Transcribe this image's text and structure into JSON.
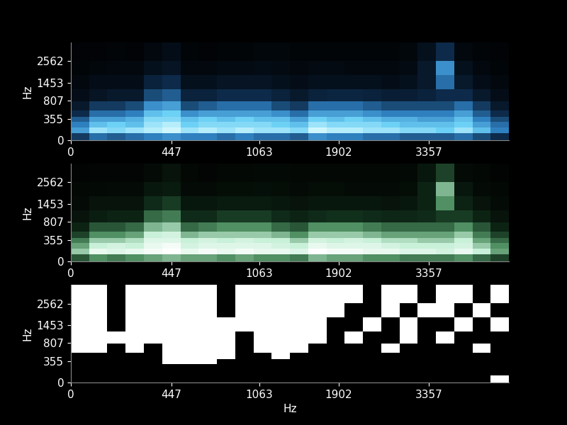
{
  "chart_data": [
    {
      "type": "heatmap",
      "ylabel": "Hz",
      "xlim": [
        0,
        5300
      ],
      "ylim": [
        0,
        4000
      ],
      "xticks": [
        0,
        447,
        1063,
        1902,
        3357
      ],
      "yticks": [
        0,
        355,
        807,
        1453,
        2562
      ],
      "x_edges": [
        0,
        66,
        137,
        216,
        302,
        396,
        498,
        611,
        733,
        867,
        1014,
        1174,
        1350,
        1541,
        1752,
        1982,
        2233,
        2507,
        2807,
        3136,
        3496,
        3889,
        4319,
        4789,
        5300
      ],
      "y_edges": [
        0,
        100,
        200,
        300,
        400,
        550,
        800,
        1200,
        1800,
        2600,
        4000
      ],
      "color_range": [
        0,
        1
      ],
      "cells": [
        [
          0.3,
          0.45,
          0.4,
          0.45,
          0.5,
          0.55,
          0.5,
          0.5,
          0.45,
          0.5,
          0.45,
          0.45,
          0.4,
          0.55,
          0.5,
          0.5,
          0.45,
          0.45,
          0.4,
          0.4,
          0.4,
          0.45,
          0.35,
          0.25
        ],
        [
          0.6,
          0.85,
          0.8,
          0.85,
          0.9,
          0.95,
          0.85,
          0.9,
          0.85,
          0.9,
          0.85,
          0.85,
          0.8,
          0.95,
          0.9,
          0.9,
          0.85,
          0.85,
          0.8,
          0.8,
          0.75,
          0.85,
          0.7,
          0.5
        ],
        [
          0.5,
          0.7,
          0.75,
          0.7,
          0.85,
          0.9,
          0.75,
          0.8,
          0.8,
          0.8,
          0.8,
          0.75,
          0.7,
          0.85,
          0.8,
          0.8,
          0.8,
          0.75,
          0.7,
          0.7,
          0.7,
          0.75,
          0.6,
          0.45
        ],
        [
          0.4,
          0.6,
          0.6,
          0.65,
          0.8,
          0.8,
          0.7,
          0.75,
          0.7,
          0.75,
          0.7,
          0.7,
          0.6,
          0.75,
          0.7,
          0.75,
          0.7,
          0.65,
          0.65,
          0.6,
          0.6,
          0.7,
          0.5,
          0.35
        ],
        [
          0.25,
          0.45,
          0.45,
          0.5,
          0.7,
          0.75,
          0.55,
          0.6,
          0.6,
          0.6,
          0.6,
          0.55,
          0.45,
          0.6,
          0.6,
          0.6,
          0.55,
          0.5,
          0.5,
          0.5,
          0.5,
          0.6,
          0.4,
          0.25
        ],
        [
          0.15,
          0.3,
          0.3,
          0.35,
          0.55,
          0.6,
          0.35,
          0.4,
          0.45,
          0.45,
          0.45,
          0.35,
          0.3,
          0.45,
          0.45,
          0.45,
          0.4,
          0.35,
          0.35,
          0.35,
          0.35,
          0.45,
          0.3,
          0.15
        ],
        [
          0.08,
          0.12,
          0.15,
          0.15,
          0.35,
          0.4,
          0.2,
          0.2,
          0.25,
          0.25,
          0.25,
          0.2,
          0.15,
          0.2,
          0.22,
          0.22,
          0.2,
          0.18,
          0.18,
          0.2,
          0.25,
          0.25,
          0.15,
          0.08
        ],
        [
          0.05,
          0.08,
          0.08,
          0.08,
          0.2,
          0.25,
          0.1,
          0.1,
          0.12,
          0.12,
          0.12,
          0.1,
          0.08,
          0.1,
          0.1,
          0.1,
          0.1,
          0.08,
          0.1,
          0.15,
          0.45,
          0.15,
          0.08,
          0.05
        ],
        [
          0.03,
          0.04,
          0.05,
          0.05,
          0.1,
          0.12,
          0.05,
          0.05,
          0.06,
          0.06,
          0.07,
          0.06,
          0.05,
          0.06,
          0.06,
          0.05,
          0.05,
          0.05,
          0.06,
          0.15,
          0.55,
          0.1,
          0.05,
          0.03
        ],
        [
          0.02,
          0.02,
          0.03,
          0.02,
          0.05,
          0.08,
          0.03,
          0.02,
          0.03,
          0.03,
          0.04,
          0.04,
          0.03,
          0.03,
          0.03,
          0.03,
          0.03,
          0.03,
          0.04,
          0.1,
          0.25,
          0.05,
          0.03,
          0.02
        ]
      ]
    },
    {
      "type": "heatmap",
      "ylabel": "Hz",
      "xlim": [
        0,
        5300
      ],
      "ylim": [
        0,
        4000
      ],
      "xticks": [
        0,
        447,
        1063,
        1902,
        3357
      ],
      "yticks": [
        0,
        355,
        807,
        1453,
        2562
      ],
      "x_edges": [
        0,
        66,
        137,
        216,
        302,
        396,
        498,
        611,
        733,
        867,
        1014,
        1174,
        1350,
        1541,
        1752,
        1982,
        2233,
        2507,
        2807,
        3136,
        3496,
        3889,
        4319,
        4789,
        5300
      ],
      "y_edges": [
        0,
        100,
        200,
        300,
        400,
        550,
        800,
        1200,
        1800,
        2600,
        4000
      ],
      "color_range": [
        0,
        1
      ],
      "cells": [
        [
          0.35,
          0.5,
          0.45,
          0.5,
          0.55,
          0.6,
          0.55,
          0.55,
          0.5,
          0.55,
          0.5,
          0.5,
          0.45,
          0.6,
          0.55,
          0.55,
          0.5,
          0.5,
          0.45,
          0.45,
          0.45,
          0.5,
          0.4,
          0.3
        ],
        [
          0.65,
          0.9,
          0.85,
          0.9,
          0.95,
          1.0,
          0.9,
          0.95,
          0.9,
          0.95,
          0.9,
          0.9,
          0.85,
          1.0,
          0.95,
          0.95,
          0.9,
          0.9,
          0.85,
          0.85,
          0.8,
          0.9,
          0.75,
          0.55
        ],
        [
          0.55,
          0.75,
          0.8,
          0.75,
          0.9,
          0.95,
          0.8,
          0.85,
          0.85,
          0.85,
          0.85,
          0.8,
          0.75,
          0.9,
          0.85,
          0.85,
          0.85,
          0.8,
          0.75,
          0.75,
          0.75,
          0.8,
          0.65,
          0.5
        ],
        [
          0.45,
          0.65,
          0.65,
          0.7,
          0.85,
          0.85,
          0.75,
          0.8,
          0.75,
          0.8,
          0.75,
          0.75,
          0.65,
          0.8,
          0.75,
          0.8,
          0.75,
          0.7,
          0.7,
          0.65,
          0.65,
          0.75,
          0.55,
          0.4
        ],
        [
          0.3,
          0.5,
          0.5,
          0.55,
          0.75,
          0.8,
          0.6,
          0.65,
          0.65,
          0.65,
          0.65,
          0.6,
          0.5,
          0.65,
          0.65,
          0.65,
          0.6,
          0.55,
          0.55,
          0.55,
          0.55,
          0.65,
          0.45,
          0.3
        ],
        [
          0.18,
          0.35,
          0.35,
          0.4,
          0.6,
          0.65,
          0.4,
          0.45,
          0.5,
          0.5,
          0.5,
          0.4,
          0.35,
          0.5,
          0.5,
          0.5,
          0.45,
          0.4,
          0.4,
          0.4,
          0.4,
          0.5,
          0.35,
          0.18
        ],
        [
          0.1,
          0.15,
          0.18,
          0.18,
          0.4,
          0.45,
          0.22,
          0.22,
          0.28,
          0.28,
          0.28,
          0.22,
          0.18,
          0.22,
          0.25,
          0.25,
          0.22,
          0.2,
          0.2,
          0.22,
          0.28,
          0.28,
          0.18,
          0.1
        ],
        [
          0.06,
          0.1,
          0.1,
          0.1,
          0.22,
          0.28,
          0.12,
          0.12,
          0.14,
          0.14,
          0.14,
          0.12,
          0.1,
          0.12,
          0.12,
          0.12,
          0.12,
          0.1,
          0.12,
          0.18,
          0.5,
          0.18,
          0.1,
          0.06
        ],
        [
          0.04,
          0.05,
          0.06,
          0.06,
          0.12,
          0.14,
          0.06,
          0.06,
          0.07,
          0.07,
          0.08,
          0.07,
          0.06,
          0.07,
          0.07,
          0.06,
          0.06,
          0.06,
          0.07,
          0.18,
          0.6,
          0.12,
          0.06,
          0.04
        ],
        [
          0.02,
          0.03,
          0.03,
          0.03,
          0.06,
          0.1,
          0.04,
          0.03,
          0.04,
          0.04,
          0.05,
          0.05,
          0.04,
          0.04,
          0.04,
          0.04,
          0.04,
          0.04,
          0.05,
          0.12,
          0.3,
          0.06,
          0.04,
          0.02
        ]
      ]
    },
    {
      "type": "heatmap",
      "ylabel": "Hz",
      "xlabel": "Hz",
      "xlim": [
        0,
        5300
      ],
      "ylim": [
        0,
        4000
      ],
      "xticks": [
        0,
        447,
        1063,
        1902,
        3357
      ],
      "yticks": [
        0,
        355,
        807,
        1453,
        2562
      ],
      "x_edges": [
        0,
        66,
        137,
        216,
        302,
        396,
        498,
        611,
        733,
        867,
        1014,
        1174,
        1350,
        1541,
        1752,
        1982,
        2233,
        2507,
        2807,
        3136,
        3496,
        3889,
        4319,
        4789,
        5300
      ],
      "y_edges": [
        0,
        100,
        200,
        300,
        400,
        550,
        800,
        1200,
        1800,
        2600,
        4000
      ],
      "color_range": [
        0,
        1
      ],
      "cells": [
        [
          0,
          0,
          0,
          0,
          0,
          0,
          0,
          0,
          0,
          0,
          0,
          0,
          0,
          0,
          0,
          0,
          0,
          0,
          0,
          0,
          0,
          0,
          0,
          1
        ],
        [
          0,
          0,
          0,
          0,
          0,
          0,
          0,
          0,
          0,
          0,
          0,
          0,
          0,
          0,
          0,
          0,
          0,
          0,
          0,
          0,
          0,
          0,
          0,
          0
        ],
        [
          0,
          0,
          0,
          0,
          0,
          0,
          0,
          0,
          0,
          0,
          0,
          0,
          0,
          0,
          0,
          0,
          0,
          0,
          0,
          0,
          0,
          0,
          0,
          0
        ],
        [
          0,
          0,
          0,
          0,
          0,
          1,
          1,
          1,
          0,
          0,
          0,
          0,
          0,
          0,
          0,
          0,
          0,
          0,
          0,
          0,
          0,
          0,
          0,
          0
        ],
        [
          0,
          0,
          0,
          0,
          0,
          1,
          1,
          1,
          1,
          0,
          0,
          1,
          0,
          0,
          0,
          0,
          0,
          0,
          0,
          0,
          0,
          0,
          0,
          0
        ],
        [
          1,
          1,
          0,
          1,
          0,
          1,
          1,
          1,
          1,
          0,
          1,
          1,
          1,
          0,
          0,
          0,
          0,
          1,
          0,
          0,
          0,
          0,
          1,
          0
        ],
        [
          1,
          1,
          1,
          1,
          1,
          1,
          1,
          1,
          1,
          0,
          1,
          1,
          1,
          1,
          0,
          1,
          0,
          0,
          1,
          0,
          1,
          0,
          0,
          0
        ],
        [
          1,
          1,
          0,
          1,
          1,
          1,
          1,
          1,
          1,
          1,
          1,
          1,
          1,
          1,
          0,
          0,
          1,
          0,
          1,
          0,
          0,
          1,
          0,
          1
        ],
        [
          1,
          1,
          0,
          1,
          1,
          1,
          1,
          1,
          0,
          1,
          1,
          1,
          1,
          1,
          1,
          0,
          0,
          1,
          0,
          1,
          1,
          0,
          1,
          0
        ],
        [
          1,
          1,
          0,
          1,
          1,
          1,
          1,
          1,
          0,
          1,
          1,
          1,
          1,
          1,
          1,
          1,
          0,
          1,
          1,
          0,
          1,
          1,
          0,
          1
        ]
      ]
    }
  ]
}
